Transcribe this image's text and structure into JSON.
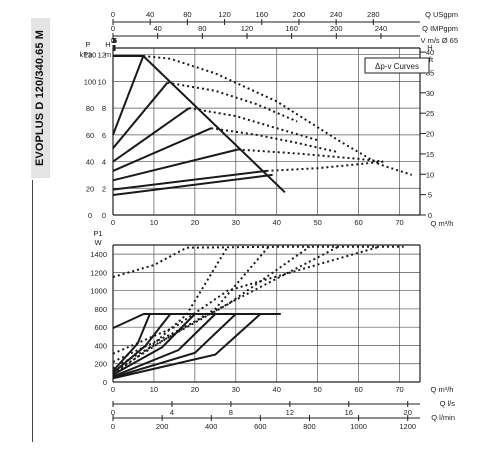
{
  "title": "EVOPLUS D 120/340.65 M",
  "chart_data": [
    {
      "id": "head",
      "type": "line",
      "title": "",
      "legend_label": "Δp-v Curves",
      "legend_placement": "top-right",
      "grid": true,
      "xlim": [
        0,
        75
      ],
      "ylim": [
        0,
        12.5
      ],
      "x_ticks": [
        0,
        10,
        20,
        30,
        40,
        50,
        60,
        70
      ],
      "y_ticks": [
        0,
        2,
        4,
        6,
        8,
        10,
        12
      ],
      "ylabel_left": [
        "P",
        "kPa"
      ],
      "ylabel_mid": "H\nm",
      "ylabel_right": [
        "H",
        "ft"
      ],
      "right_ticks": [
        0,
        5,
        10,
        15,
        20,
        25,
        30,
        35,
        40
      ],
      "xlabel": "Q m³/h",
      "top_axes": [
        {
          "label": "Q USgpm",
          "ticks": [
            0,
            40,
            80,
            120,
            160,
            200,
            240,
            280
          ]
        },
        {
          "label": "Q IMPgpm",
          "ticks": [
            0,
            40,
            80,
            120,
            160,
            200,
            240
          ]
        },
        {
          "label": "V m/s Ø 65",
          "ticks": [
            0,
            1,
            2,
            3,
            4,
            5,
            6
          ]
        }
      ],
      "series": [
        {
          "style": "solid",
          "x": [
            0,
            7.4,
            42
          ],
          "y": [
            11.9,
            11.9,
            1.7
          ]
        },
        {
          "style": "solid",
          "x": [
            0,
            7.4
          ],
          "y": [
            6,
            11.9
          ]
        },
        {
          "style": "solid",
          "x": [
            0,
            13.3
          ],
          "y": [
            5,
            9.9
          ]
        },
        {
          "style": "solid",
          "x": [
            0,
            18.6
          ],
          "y": [
            4,
            8
          ]
        },
        {
          "style": "solid",
          "x": [
            0,
            24
          ],
          "y": [
            3.3,
            6.5
          ]
        },
        {
          "style": "solid",
          "x": [
            0,
            30.5
          ],
          "y": [
            2.6,
            4.9
          ]
        },
        {
          "style": "solid",
          "x": [
            0,
            37.5
          ],
          "y": [
            1.9,
            3.3
          ]
        },
        {
          "style": "solid",
          "x": [
            0,
            39
          ],
          "y": [
            1.5,
            3
          ]
        },
        {
          "style": "dotted",
          "x": [
            7.4,
            14,
            25,
            40,
            55,
            65,
            73
          ],
          "y": [
            11.9,
            11.7,
            10.6,
            8.5,
            5.6,
            3.8,
            3
          ]
        },
        {
          "style": "dotted",
          "x": [
            13.3,
            25,
            35,
            45
          ],
          "y": [
            9.9,
            9.3,
            8.3,
            7
          ]
        },
        {
          "style": "dotted",
          "x": [
            18.6,
            30,
            40,
            50
          ],
          "y": [
            8,
            7.4,
            6.5,
            5.6
          ]
        },
        {
          "style": "dotted",
          "x": [
            24,
            35,
            45,
            55
          ],
          "y": [
            6.5,
            6,
            5.4,
            4.7
          ]
        },
        {
          "style": "dotted",
          "x": [
            30.5,
            45,
            60,
            66
          ],
          "y": [
            4.9,
            4.6,
            4.2,
            4
          ]
        },
        {
          "style": "dotted",
          "x": [
            37.5,
            50,
            60,
            66
          ],
          "y": [
            3.3,
            3.5,
            3.8,
            4
          ]
        }
      ]
    },
    {
      "id": "power",
      "type": "line",
      "title": "",
      "grid": true,
      "xlim": [
        0,
        75
      ],
      "ylim": [
        0,
        1500
      ],
      "x_ticks": [
        0,
        10,
        20,
        30,
        40,
        50,
        60,
        70
      ],
      "y_ticks": [
        0,
        200,
        400,
        600,
        800,
        1000,
        1200,
        1400
      ],
      "ylabel": [
        "P1",
        "W"
      ],
      "xlabel": "Q m³/h",
      "bottom_axes": [
        {
          "label": "Q l/s",
          "ticks": [
            0,
            4,
            8,
            12,
            16,
            20
          ]
        },
        {
          "label": "Q l/min",
          "ticks": [
            0,
            200,
            400,
            600,
            800,
            1000,
            1200
          ]
        }
      ],
      "series": [
        {
          "style": "solid",
          "x": [
            0,
            7.5,
            41
          ],
          "y": [
            590,
            745,
            745
          ]
        },
        {
          "style": "solid",
          "x": [
            0,
            6,
            9
          ],
          "y": [
            120,
            420,
            745
          ]
        },
        {
          "style": "solid",
          "x": [
            0,
            8,
            14
          ],
          "y": [
            100,
            400,
            745
          ]
        },
        {
          "style": "solid",
          "x": [
            0,
            12,
            20
          ],
          "y": [
            80,
            380,
            745
          ]
        },
        {
          "style": "solid",
          "x": [
            0,
            16,
            25
          ],
          "y": [
            60,
            350,
            745
          ]
        },
        {
          "style": "solid",
          "x": [
            0,
            20,
            30
          ],
          "y": [
            50,
            320,
            745
          ]
        },
        {
          "style": "solid",
          "x": [
            0,
            25,
            36
          ],
          "y": [
            40,
            300,
            745
          ]
        },
        {
          "style": "dotted",
          "x": [
            0,
            10,
            18,
            40,
            71
          ],
          "y": [
            1150,
            1280,
            1470,
            1480,
            1480
          ]
        },
        {
          "style": "dotted",
          "x": [
            0,
            15,
            28,
            65
          ],
          "y": [
            310,
            600,
            1000,
            1480
          ]
        },
        {
          "style": "dotted",
          "x": [
            0,
            14,
            30,
            55
          ],
          "y": [
            220,
            520,
            900,
            1480
          ]
        },
        {
          "style": "dotted",
          "x": [
            0,
            12,
            28,
            48
          ],
          "y": [
            150,
            450,
            850,
            1480
          ]
        },
        {
          "style": "dotted",
          "x": [
            0,
            10,
            25,
            38
          ],
          "y": [
            100,
            390,
            800,
            1480
          ]
        },
        {
          "style": "dotted",
          "x": [
            0,
            8,
            18,
            28
          ],
          "y": [
            80,
            340,
            740,
            1480
          ]
        }
      ]
    }
  ]
}
